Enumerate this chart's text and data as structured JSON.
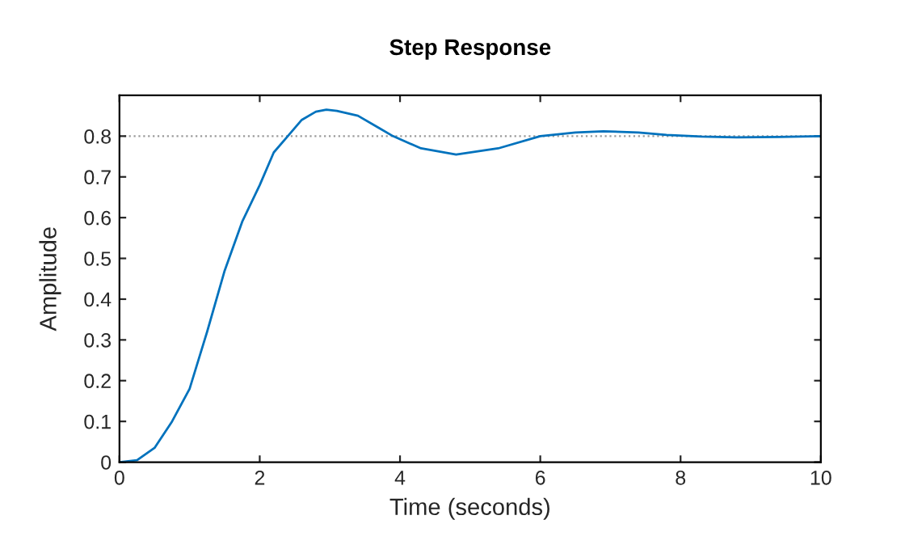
{
  "chart_data": {
    "type": "line",
    "title": "Step Response",
    "xlabel": "Time (seconds)",
    "ylabel": "Amplitude",
    "x": [
      0,
      0.25,
      0.5,
      0.75,
      1,
      1.25,
      1.5,
      1.75,
      2,
      2.2,
      2.4,
      2.6,
      2.8,
      2.95,
      3.1,
      3.4,
      3.7,
      3.9,
      4.3,
      4.8,
      5.4,
      6,
      6.5,
      6.9,
      7.4,
      7.8,
      8.3,
      8.8,
      9.4,
      10
    ],
    "series": [
      {
        "color": "#0072bd",
        "values": [
          0,
          0.005,
          0.035,
          0.1,
          0.18,
          0.32,
          0.47,
          0.59,
          0.68,
          0.76,
          0.8,
          0.84,
          0.86,
          0.865,
          0.862,
          0.85,
          0.82,
          0.8,
          0.77,
          0.755,
          0.77,
          0.8,
          0.809,
          0.812,
          0.809,
          0.803,
          0.799,
          0.797,
          0.798,
          0.8
        ]
      }
    ],
    "xlim": [
      0,
      10
    ],
    "ylim": [
      0,
      0.9
    ],
    "xticks": [
      0,
      2,
      4,
      6,
      8,
      10
    ],
    "yticks": [
      0,
      0.1,
      0.2,
      0.3,
      0.4,
      0.5,
      0.6,
      0.7,
      0.8
    ],
    "ref_lines": [
      {
        "axis": "y",
        "value": 0.8,
        "color": "#999999",
        "line_style": "dotted"
      }
    ],
    "grid": false,
    "legend": false,
    "marker": "none",
    "line_style": "solid"
  }
}
